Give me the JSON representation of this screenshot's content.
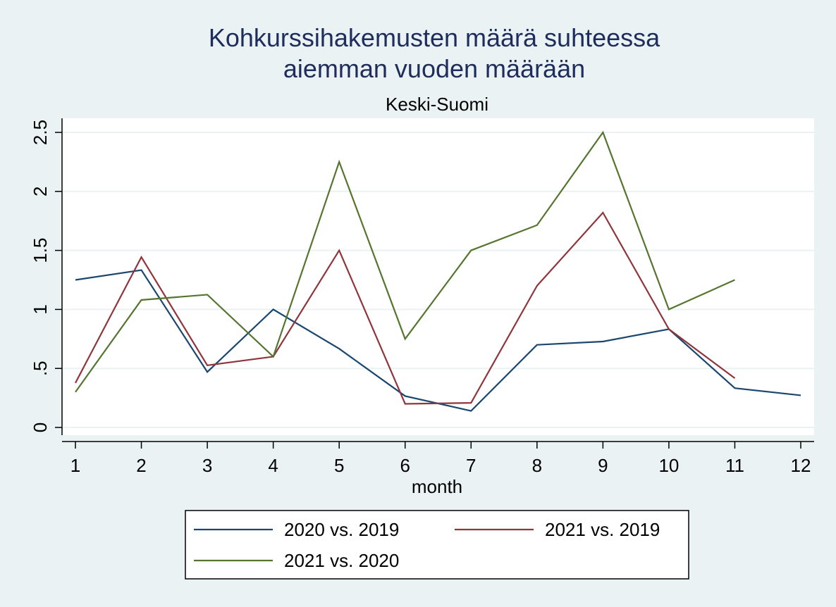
{
  "chart_data": {
    "type": "line",
    "title": [
      "Kohkurssihakemusten määrä suhteessa",
      "aiemman vuoden määrään"
    ],
    "subtitle": "Keski-Suomi",
    "xlabel": "month",
    "ylabel": "",
    "x": [
      1,
      2,
      3,
      4,
      5,
      6,
      7,
      8,
      9,
      10,
      11,
      12
    ],
    "x_tick_labels": [
      "1",
      "2",
      "3",
      "4",
      "5",
      "6",
      "7",
      "8",
      "9",
      "10",
      "11",
      "12"
    ],
    "y_ticks": [
      0,
      0.5,
      1,
      1.5,
      2,
      2.5
    ],
    "y_tick_labels": [
      "0",
      ".5",
      "1",
      "1.5",
      "2",
      "2.5"
    ],
    "xlim": [
      1,
      12
    ],
    "ylim": [
      0,
      2.5
    ],
    "grid": "horizontal",
    "legend_position": "bottom",
    "series": [
      {
        "name": "2020 vs. 2019",
        "color": "#1a476f",
        "values": [
          1.25,
          1.333,
          0.47,
          1.0,
          0.667,
          0.266,
          0.14,
          0.7,
          0.728,
          0.833,
          0.333,
          0.272
        ]
      },
      {
        "name": "2021 vs. 2019",
        "color": "#90353b",
        "values": [
          0.377,
          1.443,
          0.526,
          0.6,
          1.5,
          0.2,
          0.208,
          1.2,
          1.82,
          0.833,
          0.417,
          null
        ]
      },
      {
        "name": "2021 vs. 2020",
        "color": "#55752f",
        "values": [
          0.3,
          1.08,
          1.125,
          0.6,
          2.25,
          0.75,
          1.5,
          1.714,
          2.5,
          1.0,
          1.25,
          null
        ]
      }
    ]
  }
}
